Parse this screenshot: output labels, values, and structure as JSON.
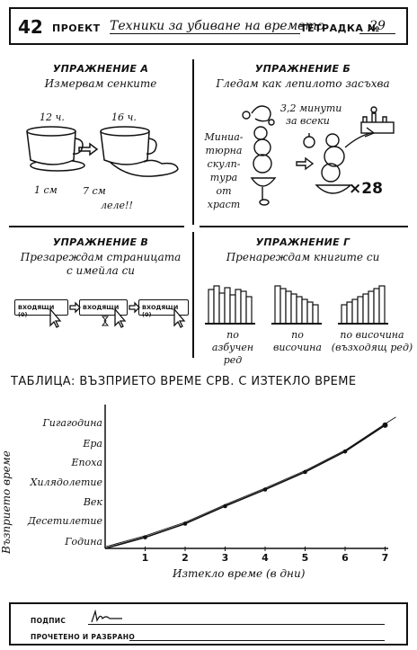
{
  "header": {
    "number": "42",
    "project_label": "ПРОЕКТ",
    "project_title": "Техники за убиване на времето",
    "notebook_label": "ТЕТРАДКА №",
    "notebook_number": "29"
  },
  "exercises": {
    "a": {
      "heading": "УПРАЖНЕНИЕ А",
      "subtitle": "Измервам сенките",
      "label_12": "12 ч.",
      "label_16": "16 ч.",
      "measure_1": "1 см",
      "measure_7": "7 см",
      "exclaim": "леле!!"
    },
    "b": {
      "heading": "УПРАЖНЕНИЕ Б",
      "subtitle": "Гледам как лепилото засъхва",
      "side_lines": [
        "Миниа-",
        "тюрна",
        "скулп-",
        "тура",
        "от",
        "храст"
      ],
      "rate_line1": "3,2 минути",
      "rate_line2": "за всеки",
      "times": "×28"
    },
    "c": {
      "heading": "УПРАЖНЕНИЕ В",
      "subtitle_line1": "Презареждам страницата",
      "subtitle_line2": "с имейла си",
      "inbox_1": "ВХОДЯЩИ (0)",
      "inbox_2": "ВХОДЯЩИ",
      "inbox_3": "ВХОДЯЩИ (0)"
    },
    "d": {
      "heading": "УПРАЖНЕНИЕ Г",
      "subtitle": "Пренареждам книгите си",
      "label_1_line1": "по",
      "label_1_line2": "азбучен ред",
      "label_2_line1": "по",
      "label_2_line2": "височина",
      "label_3_line1": "по височина",
      "label_3_line2": "(възходящ ред)"
    }
  },
  "table": {
    "title": "ТАБЛИЦА: ВЪЗПРИЕТО ВРЕМЕ СРВ. С ИЗТЕКЛО ВРЕМЕ"
  },
  "chart_data": {
    "type": "line",
    "x": [
      1,
      2,
      3,
      4,
      5,
      6,
      7
    ],
    "categories": [
      "Година",
      "Десетилетие",
      "Век",
      "Хилядолетие",
      "Епоха",
      "Ера",
      "Гигагодина"
    ],
    "y_level": [
      0.2,
      0.9,
      1.8,
      2.65,
      3.55,
      4.6,
      5.95
    ],
    "xlabel": "Изтекло време (в дни)",
    "ylabel": "Възприето време",
    "xticks": [
      "1",
      "2",
      "3",
      "4",
      "5",
      "6",
      "7"
    ],
    "xlim": [
      0,
      7.2
    ],
    "grid": false
  },
  "signature": {
    "sign_label": "ПОДПИС",
    "read_label": "ПРОЧЕТЕНО И РАЗБРАНО"
  }
}
